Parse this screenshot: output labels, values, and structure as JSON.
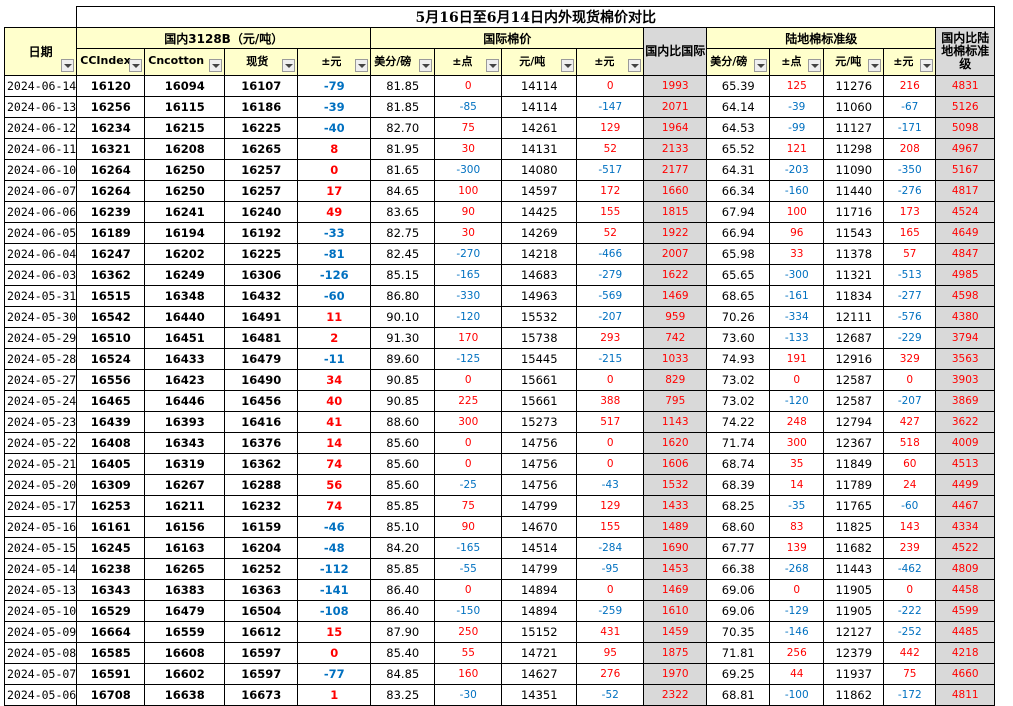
{
  "title": "5月16日至6月14日内外现货棉价对比",
  "groups": {
    "domestic": "国内3128B（元/吨）",
    "intl": "国际棉价",
    "port": "陆地棉标准级"
  },
  "headers": {
    "date": "日期",
    "cc_index": "CCIndex",
    "cncotton": "Cncotton",
    "spot": "现货",
    "spot_chg": "±元",
    "usc_lb": "美分/磅",
    "usc_chg": "±点",
    "yuan_ton": "元/吨",
    "yuan_chg": "±元",
    "diff_intl": "国内比国际",
    "port_usc_lb": "美分/磅",
    "port_usc_chg": "±点",
    "port_yuan_ton": "元/吨",
    "port_yuan_chg": "±元",
    "diff_port": "国内比陆地棉标准级"
  },
  "colors": {
    "up": "#ff0000",
    "down": "#0070c0",
    "header_bg": "#ffffcc",
    "diff_bg": "#d9d9d9"
  },
  "rows": [
    [
      "2024-06-14",
      "16120",
      "16094",
      "16107",
      "-79",
      "81.85",
      "0",
      "14114",
      "0",
      "1993",
      "65.39",
      "125",
      "11276",
      "216",
      "4831"
    ],
    [
      "2024-06-13",
      "16256",
      "16115",
      "16186",
      "-39",
      "81.85",
      "-85",
      "14114",
      "-147",
      "2071",
      "64.14",
      "-39",
      "11060",
      "-67",
      "5126"
    ],
    [
      "2024-06-12",
      "16234",
      "16215",
      "16225",
      "-40",
      "82.70",
      "75",
      "14261",
      "129",
      "1964",
      "64.53",
      "-99",
      "11127",
      "-171",
      "5098"
    ],
    [
      "2024-06-11",
      "16321",
      "16208",
      "16265",
      "8",
      "81.95",
      "30",
      "14131",
      "52",
      "2133",
      "65.52",
      "121",
      "11298",
      "208",
      "4967"
    ],
    [
      "2024-06-10",
      "16264",
      "16250",
      "16257",
      "0",
      "81.65",
      "-300",
      "14080",
      "-517",
      "2177",
      "64.31",
      "-203",
      "11090",
      "-350",
      "5167"
    ],
    [
      "2024-06-07",
      "16264",
      "16250",
      "16257",
      "17",
      "84.65",
      "100",
      "14597",
      "172",
      "1660",
      "66.34",
      "-160",
      "11440",
      "-276",
      "4817"
    ],
    [
      "2024-06-06",
      "16239",
      "16241",
      "16240",
      "49",
      "83.65",
      "90",
      "14425",
      "155",
      "1815",
      "67.94",
      "100",
      "11716",
      "173",
      "4524"
    ],
    [
      "2024-06-05",
      "16189",
      "16194",
      "16192",
      "-33",
      "82.75",
      "30",
      "14269",
      "52",
      "1922",
      "66.94",
      "96",
      "11543",
      "165",
      "4649"
    ],
    [
      "2024-06-04",
      "16247",
      "16202",
      "16225",
      "-81",
      "82.45",
      "-270",
      "14218",
      "-466",
      "2007",
      "65.98",
      "33",
      "11378",
      "57",
      "4847"
    ],
    [
      "2024-06-03",
      "16362",
      "16249",
      "16306",
      "-126",
      "85.15",
      "-165",
      "14683",
      "-279",
      "1622",
      "65.65",
      "-300",
      "11321",
      "-513",
      "4985"
    ],
    [
      "2024-05-31",
      "16515",
      "16348",
      "16432",
      "-60",
      "86.80",
      "-330",
      "14963",
      "-569",
      "1469",
      "68.65",
      "-161",
      "11834",
      "-277",
      "4598"
    ],
    [
      "2024-05-30",
      "16542",
      "16440",
      "16491",
      "11",
      "90.10",
      "-120",
      "15532",
      "-207",
      "959",
      "70.26",
      "-334",
      "12111",
      "-576",
      "4380"
    ],
    [
      "2024-05-29",
      "16510",
      "16451",
      "16481",
      "2",
      "91.30",
      "170",
      "15738",
      "293",
      "742",
      "73.60",
      "-133",
      "12687",
      "-229",
      "3794"
    ],
    [
      "2024-05-28",
      "16524",
      "16433",
      "16479",
      "-11",
      "89.60",
      "-125",
      "15445",
      "-215",
      "1033",
      "74.93",
      "191",
      "12916",
      "329",
      "3563"
    ],
    [
      "2024-05-27",
      "16556",
      "16423",
      "16490",
      "34",
      "90.85",
      "0",
      "15661",
      "0",
      "829",
      "73.02",
      "0",
      "12587",
      "0",
      "3903"
    ],
    [
      "2024-05-24",
      "16465",
      "16446",
      "16456",
      "40",
      "90.85",
      "225",
      "15661",
      "388",
      "795",
      "73.02",
      "-120",
      "12587",
      "-207",
      "3869"
    ],
    [
      "2024-05-23",
      "16439",
      "16393",
      "16416",
      "41",
      "88.60",
      "300",
      "15273",
      "517",
      "1143",
      "74.22",
      "248",
      "12794",
      "427",
      "3622"
    ],
    [
      "2024-05-22",
      "16408",
      "16343",
      "16376",
      "14",
      "85.60",
      "0",
      "14756",
      "0",
      "1620",
      "71.74",
      "300",
      "12367",
      "518",
      "4009"
    ],
    [
      "2024-05-21",
      "16405",
      "16319",
      "16362",
      "74",
      "85.60",
      "0",
      "14756",
      "0",
      "1606",
      "68.74",
      "35",
      "11849",
      "60",
      "4513"
    ],
    [
      "2024-05-20",
      "16309",
      "16267",
      "16288",
      "56",
      "85.60",
      "-25",
      "14756",
      "-43",
      "1532",
      "68.39",
      "14",
      "11789",
      "24",
      "4499"
    ],
    [
      "2024-05-17",
      "16253",
      "16211",
      "16232",
      "74",
      "85.85",
      "75",
      "14799",
      "129",
      "1433",
      "68.25",
      "-35",
      "11765",
      "-60",
      "4467"
    ],
    [
      "2024-05-16",
      "16161",
      "16156",
      "16159",
      "-46",
      "85.10",
      "90",
      "14670",
      "155",
      "1489",
      "68.60",
      "83",
      "11825",
      "143",
      "4334"
    ],
    [
      "2024-05-15",
      "16245",
      "16163",
      "16204",
      "-48",
      "84.20",
      "-165",
      "14514",
      "-284",
      "1690",
      "67.77",
      "139",
      "11682",
      "239",
      "4522"
    ],
    [
      "2024-05-14",
      "16238",
      "16265",
      "16252",
      "-112",
      "85.85",
      "-55",
      "14799",
      "-95",
      "1453",
      "66.38",
      "-268",
      "11443",
      "-462",
      "4809"
    ],
    [
      "2024-05-13",
      "16343",
      "16383",
      "16363",
      "-141",
      "86.40",
      "0",
      "14894",
      "0",
      "1469",
      "69.06",
      "0",
      "11905",
      "0",
      "4458"
    ],
    [
      "2024-05-10",
      "16529",
      "16479",
      "16504",
      "-108",
      "86.40",
      "-150",
      "14894",
      "-259",
      "1610",
      "69.06",
      "-129",
      "11905",
      "-222",
      "4599"
    ],
    [
      "2024-05-09",
      "16664",
      "16559",
      "16612",
      "15",
      "87.90",
      "250",
      "15152",
      "431",
      "1459",
      "70.35",
      "-146",
      "12127",
      "-252",
      "4485"
    ],
    [
      "2024-05-08",
      "16585",
      "16608",
      "16597",
      "0",
      "85.40",
      "55",
      "14721",
      "95",
      "1875",
      "71.81",
      "256",
      "12379",
      "442",
      "4218"
    ],
    [
      "2024-05-07",
      "16591",
      "16602",
      "16597",
      "-77",
      "84.85",
      "160",
      "14627",
      "276",
      "1970",
      "69.25",
      "44",
      "11937",
      "75",
      "4660"
    ],
    [
      "2024-05-06",
      "16708",
      "16638",
      "16673",
      "1",
      "83.25",
      "-30",
      "14351",
      "-52",
      "2322",
      "68.81",
      "-100",
      "11862",
      "-172",
      "4811"
    ]
  ]
}
